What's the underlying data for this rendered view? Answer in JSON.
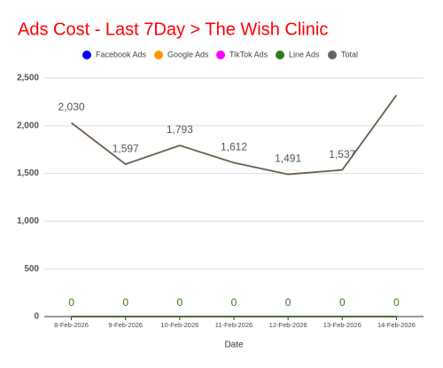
{
  "chart_data": {
    "type": "line",
    "title": "Ads Cost - Last 7Day > The Wish Clinic",
    "x_label": "Date",
    "categories": [
      "8-Feb-2026",
      "9-Feb-2026",
      "10-Feb-2026",
      "11-Feb-2026",
      "12-Feb-2026",
      "13-Feb-2026",
      "14-Feb-2026"
    ],
    "series": [
      {
        "name": "Facebook Ads",
        "color": "#0000ff",
        "values": [
          0,
          0,
          0,
          0,
          0,
          0,
          0
        ]
      },
      {
        "name": "Google Ads",
        "color": "#ff9900",
        "values": [
          0,
          0,
          0,
          0,
          0,
          0,
          0
        ]
      },
      {
        "name": "TikTok Ads",
        "color": "#ff00ff",
        "values": [
          0,
          0,
          0,
          0,
          0,
          0,
          0
        ]
      },
      {
        "name": "Line Ads",
        "color": "#38761d",
        "values": [
          0,
          0,
          0,
          0,
          0,
          0,
          0
        ],
        "data_labels": true
      },
      {
        "name": "Total",
        "color": "#6b5b4b",
        "legend_color": "#666666",
        "values": [
          2030,
          1597,
          1793,
          1612,
          1491,
          1537,
          2320
        ],
        "value_labels": [
          "2,030",
          "1,597",
          "1,793",
          "1,612",
          "1,491",
          "1,537",
          null
        ],
        "data_labels": true
      }
    ],
    "ylim": [
      0,
      2500
    ],
    "yticks": [
      0,
      {
        "value": 500,
        "label": "500"
      },
      {
        "value": 1000,
        "label": "1,000"
      },
      {
        "value": 1500,
        "label": "1,500"
      },
      {
        "value": 2000,
        "label": "2,000"
      },
      {
        "value": 2500,
        "label": "2,500"
      }
    ],
    "grid": true,
    "legend": "top"
  }
}
